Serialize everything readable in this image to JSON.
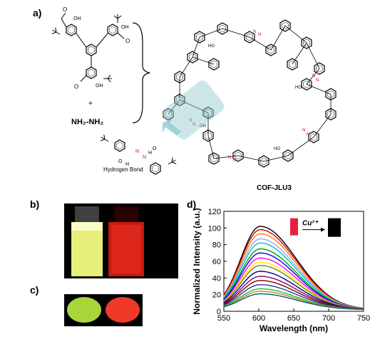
{
  "panel_labels": {
    "a": "a)",
    "b": "b)",
    "c": "c)",
    "d": "d)"
  },
  "scheme": {
    "plus": "+",
    "reagent": "NH₂-NH₂",
    "hydrogen_bond_label": "Hydrogen Bond",
    "product_label": "COF-JLU3"
  },
  "photos": {
    "vial_colors": [
      "#e8ee7a",
      "#e32a1e"
    ],
    "powder_colors": [
      "#a8d53a",
      "#ef3a2a"
    ]
  },
  "chart_data": {
    "type": "line",
    "title": "",
    "xlabel": "Wavelength (nm)",
    "ylabel": "Normalized Intensity (a.u.)",
    "xlim": [
      550,
      750
    ],
    "ylim": [
      0,
      120
    ],
    "xticks": [
      550,
      600,
      650,
      700,
      750
    ],
    "yticks": [
      0,
      20,
      40,
      60,
      80,
      100,
      120
    ],
    "grid": false,
    "peak_x": 602,
    "series": [
      {
        "color": "#000000",
        "peak": 100
      },
      {
        "color": "#d00000",
        "peak": 96
      },
      {
        "color": "#ff7f00",
        "peak": 91
      },
      {
        "color": "#a0a0ff",
        "peak": 85
      },
      {
        "color": "#00c0c0",
        "peak": 80
      },
      {
        "color": "#00a000",
        "peak": 73
      },
      {
        "color": "#0000ff",
        "peak": 68
      },
      {
        "color": "#ff00ff",
        "peak": 62
      },
      {
        "color": "#ffee00",
        "peak": 57
      },
      {
        "color": "#808000",
        "peak": 53
      },
      {
        "color": "#000080",
        "peak": 46
      },
      {
        "color": "#800080",
        "peak": 40
      },
      {
        "color": "#800000",
        "peak": 35
      },
      {
        "color": "#2040a0",
        "peak": 30
      },
      {
        "color": "#20c020",
        "peak": 25
      },
      {
        "color": "#c08040",
        "peak": 22
      },
      {
        "color": "#006060",
        "peak": 19
      }
    ],
    "inset": {
      "label": "Cu²⁺",
      "before_color": "#e82040",
      "after_color": "#000000"
    }
  }
}
